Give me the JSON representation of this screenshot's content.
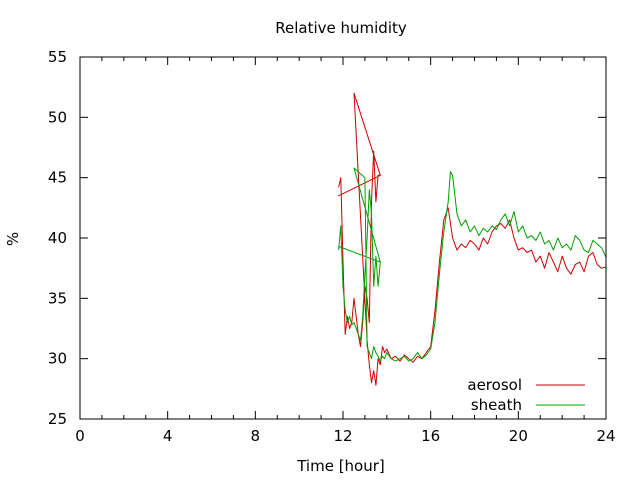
{
  "chart_data": {
    "type": "line",
    "title": "Relative humidity",
    "xlabel": "Time [hour]",
    "ylabel": "%",
    "xlim": [
      0,
      24
    ],
    "ylim": [
      25,
      55
    ],
    "xticks": [
      0,
      4,
      8,
      12,
      16,
      20,
      24
    ],
    "yticks": [
      25,
      30,
      35,
      40,
      45,
      50,
      55
    ],
    "grid": false,
    "legend_position": "bottom-right",
    "series": [
      {
        "name": "aerosol",
        "color": "#cc0000",
        "x": [
          11.8,
          11.9,
          12.0,
          12.1,
          12.2,
          12.3,
          12.4,
          12.5,
          12.6,
          12.7,
          12.8,
          12.9,
          13.0,
          13.1,
          13.2,
          13.3,
          13.4,
          13.5,
          13.6,
          13.7,
          11.8,
          13.7,
          12.5,
          13.1,
          13.2,
          13.3,
          13.4,
          13.5,
          13.6,
          13.7,
          13.8,
          13.9,
          14.0,
          14.2,
          14.4,
          14.6,
          14.8,
          15.0,
          15.2,
          15.4,
          15.6,
          15.8,
          16.0,
          16.2,
          16.4,
          16.6,
          16.8,
          17.0,
          17.2,
          17.4,
          17.6,
          17.8,
          18.0,
          18.2,
          18.4,
          18.6,
          18.8,
          19.0,
          19.2,
          19.4,
          19.6,
          19.8,
          20.0,
          20.2,
          20.4,
          20.6,
          20.8,
          21.0,
          21.2,
          21.4,
          21.6,
          21.8,
          22.0,
          22.2,
          22.4,
          22.6,
          22.8,
          23.0,
          23.2,
          23.4,
          23.6,
          23.8,
          24.0
        ],
        "y": [
          44.2,
          45.0,
          38.0,
          32.0,
          33.5,
          32.5,
          33.0,
          35.0,
          33.5,
          32.0,
          31.0,
          33.0,
          36.0,
          35.0,
          33.0,
          43.0,
          47.2,
          43.0,
          45.2,
          45.2,
          43.5,
          45.2,
          52.0,
          31.5,
          29.5,
          28.0,
          29.0,
          27.8,
          30.0,
          29.5,
          31.0,
          30.5,
          30.8,
          30.0,
          30.2,
          29.8,
          30.3,
          30.0,
          29.7,
          30.2,
          30.0,
          30.5,
          31.0,
          34.0,
          38.0,
          41.5,
          42.5,
          40.0,
          39.0,
          39.5,
          39.2,
          39.8,
          39.5,
          39.0,
          40.0,
          39.5,
          40.5,
          41.0,
          41.2,
          40.8,
          41.5,
          40.0,
          39.0,
          39.2,
          38.8,
          39.0,
          38.0,
          38.5,
          37.5,
          38.8,
          38.0,
          37.2,
          38.5,
          37.5,
          37.0,
          37.8,
          38.0,
          37.2,
          38.5,
          38.8,
          37.8,
          37.5,
          37.6
        ]
      },
      {
        "name": "sheath",
        "color": "#00a000",
        "x": [
          11.8,
          11.9,
          12.0,
          12.1,
          12.2,
          12.3,
          12.4,
          12.5,
          12.6,
          12.7,
          12.8,
          12.9,
          13.0,
          13.1,
          13.2,
          13.3,
          13.4,
          13.5,
          13.6,
          13.7,
          11.8,
          13.7,
          12.5,
          13.0,
          13.1,
          13.2,
          13.3,
          13.4,
          13.5,
          13.6,
          13.7,
          13.8,
          13.9,
          14.0,
          14.2,
          14.4,
          14.6,
          14.8,
          15.0,
          15.2,
          15.4,
          15.6,
          15.8,
          16.0,
          16.2,
          16.4,
          16.6,
          16.8,
          16.9,
          17.0,
          17.2,
          17.4,
          17.6,
          17.8,
          18.0,
          18.2,
          18.4,
          18.6,
          18.8,
          19.0,
          19.2,
          19.4,
          19.6,
          19.8,
          20.0,
          20.2,
          20.4,
          20.6,
          20.8,
          21.0,
          21.2,
          21.4,
          21.6,
          21.8,
          22.0,
          22.2,
          22.4,
          22.6,
          22.8,
          23.0,
          23.2,
          23.4,
          23.6,
          23.8,
          24.0
        ],
        "y": [
          39.0,
          41.0,
          36.0,
          34.0,
          33.0,
          33.5,
          32.8,
          33.0,
          32.5,
          32.0,
          31.5,
          33.5,
          37.0,
          40.0,
          44.0,
          42.0,
          36.0,
          38.5,
          36.0,
          38.0,
          39.3,
          38.0,
          45.8,
          45.0,
          31.0,
          30.5,
          30.0,
          31.0,
          30.5,
          30.2,
          29.8,
          30.2,
          30.0,
          30.5,
          30.0,
          29.8,
          30.0,
          30.2,
          29.8,
          30.0,
          30.5,
          30.0,
          30.3,
          30.8,
          33.0,
          37.0,
          40.5,
          43.0,
          45.5,
          45.2,
          42.0,
          41.0,
          41.5,
          40.5,
          41.0,
          40.2,
          40.8,
          40.5,
          41.0,
          40.7,
          41.5,
          42.0,
          41.0,
          42.2,
          40.5,
          41.0,
          40.0,
          40.2,
          39.8,
          40.5,
          39.5,
          39.8,
          39.0,
          40.0,
          39.2,
          39.5,
          39.0,
          40.2,
          39.8,
          39.0,
          38.8,
          39.8,
          39.5,
          39.2,
          38.4
        ]
      }
    ]
  }
}
